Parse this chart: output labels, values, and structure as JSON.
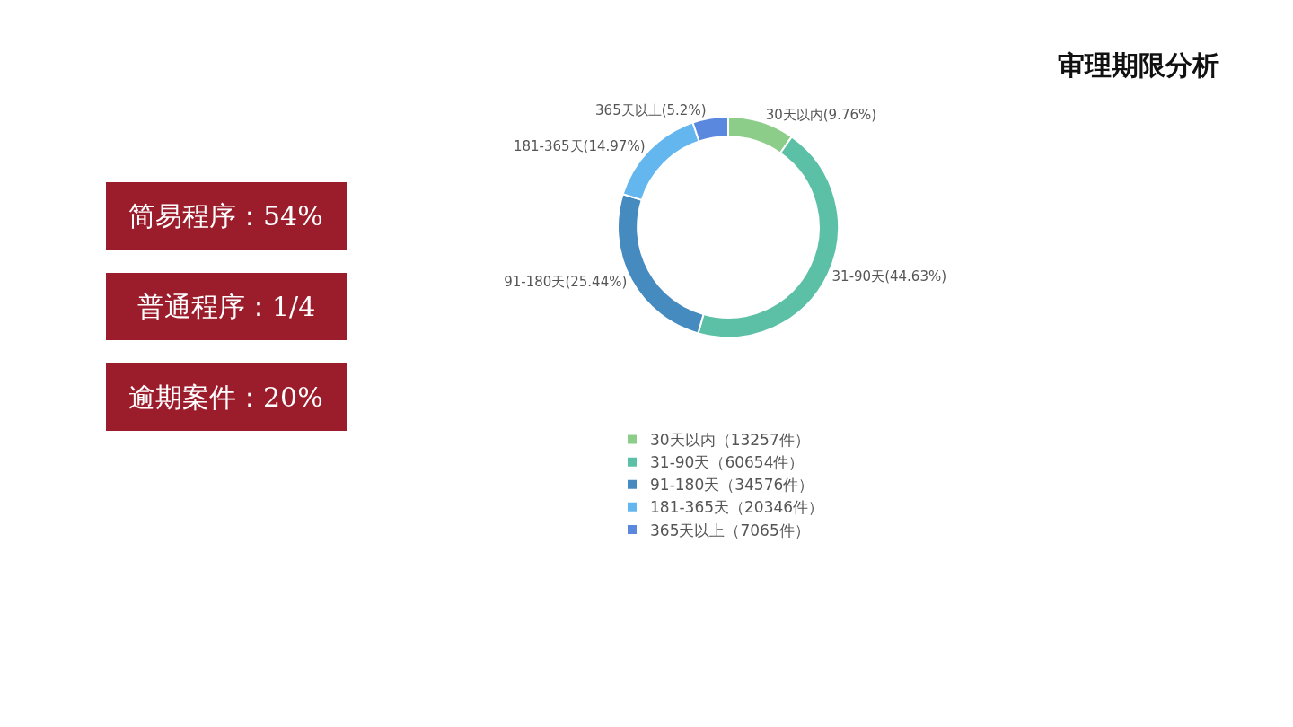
{
  "chart_data": [
    {
      "type": "other",
      "annotations": [
        "简易程序：54%",
        "普通程序：1/4",
        "逾期案件：20%"
      ]
    },
    {
      "type": "donut",
      "title": "审理期限分析",
      "categories": [
        "30天以内（13257件）",
        "31-90天（60654件）",
        "91-180天（34576件）",
        "181-365天（20346件）",
        "365天以上（7065件）"
      ],
      "values": [
        9.76,
        44.63,
        25.44,
        14.97,
        5.2
      ],
      "value_labels": [
        "30天以内(9.76%)",
        "31-90天(44.63%)",
        "91-180天(25.44%)",
        "181-365天(14.97%)",
        "365天以上(5.2%)"
      ],
      "colors": [
        "#8ccd8a",
        "#5cc0a6",
        "#468bc0",
        "#63b6ee",
        "#5b88df"
      ],
      "legend": "bottom"
    }
  ]
}
